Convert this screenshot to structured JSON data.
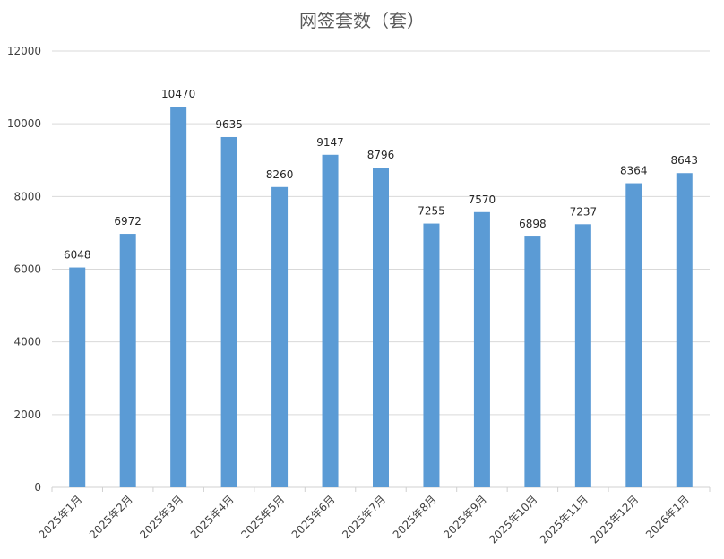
{
  "chart_data": {
    "type": "bar",
    "title": "网签套数（套）",
    "categories": [
      "2025年1月",
      "2025年2月",
      "2025年3月",
      "2025年4月",
      "2025年5月",
      "2025年6月",
      "2025年7月",
      "2025年8月",
      "2025年9月",
      "2025年10月",
      "2025年11月",
      "2025年12月",
      "2026年1月"
    ],
    "values": [
      6048,
      6972,
      10470,
      9635,
      8260,
      9147,
      8796,
      7255,
      7570,
      6898,
      7237,
      8364,
      8643
    ],
    "ylim": [
      0,
      12000
    ],
    "yticks": [
      0,
      2000,
      4000,
      6000,
      8000,
      10000,
      12000
    ],
    "grid": true,
    "legend": "none",
    "bar_color": "#5B9BD5",
    "data_labels": true
  }
}
